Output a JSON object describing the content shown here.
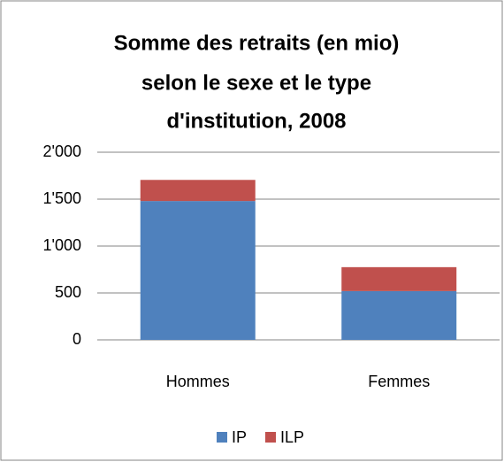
{
  "chart_data": {
    "type": "stacked-bar",
    "title": [
      "Somme des retraits (en mio)",
      "selon le sexe et le type",
      "d'institution, 2008"
    ],
    "categories": [
      "Hommes",
      "Femmes"
    ],
    "series": [
      {
        "name": "IP",
        "color": "#4f81bd",
        "values": [
          1480,
          520
        ]
      },
      {
        "name": "ILP",
        "color": "#c0504d",
        "values": [
          225,
          255
        ]
      }
    ],
    "ylim": [
      0,
      2000
    ],
    "yticks": [
      0,
      500,
      {
        "value": 1000,
        "label": "1'000"
      },
      {
        "value": 1500,
        "label": "1'500"
      },
      {
        "value": 2000,
        "label": "2'000"
      }
    ],
    "grid": true,
    "legend": "bottom"
  }
}
